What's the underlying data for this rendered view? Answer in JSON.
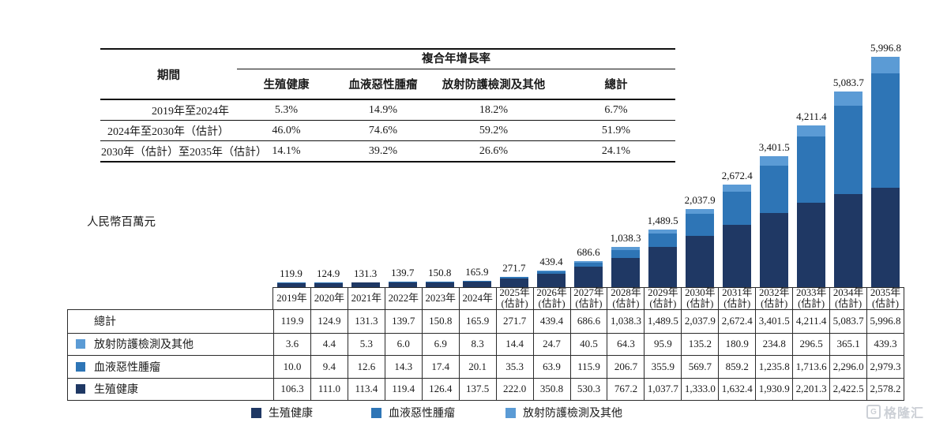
{
  "cagr_table": {
    "span_header": "複合年增長率",
    "period_header": "期間",
    "columns": [
      "生殖健康",
      "血液惡性腫瘤",
      "放射防護檢測及其他",
      "總計"
    ],
    "rows": [
      {
        "period": "2019年至2024年",
        "values": [
          "5.3%",
          "14.9%",
          "18.2%",
          "6.7%"
        ]
      },
      {
        "period": "2024年至2030年（估計）",
        "values": [
          "46.0%",
          "74.6%",
          "59.2%",
          "51.9%"
        ]
      },
      {
        "period": "2030年（估計）至2035年（估計）",
        "values": [
          "14.1%",
          "39.2%",
          "26.6%",
          "24.1%"
        ]
      }
    ]
  },
  "unit_label": "人民幣百萬元",
  "chart_data": {
    "type": "bar",
    "stacked": true,
    "title": "",
    "ylabel": "人民幣百萬元",
    "grid": false,
    "legend_position": "bottom",
    "ylim": [
      0,
      5996.8
    ],
    "categories": [
      "2019年",
      "2020年",
      "2021年",
      "2022年",
      "2023年",
      "2024年",
      "2025年",
      "2026年",
      "2027年",
      "2028年",
      "2029年",
      "2030年",
      "2031年",
      "2032年",
      "2033年",
      "2034年",
      "2035年"
    ],
    "estimate_note": "(估計)",
    "estimate_from_index": 6,
    "series": [
      {
        "name": "生殖健康",
        "color": "#1F3864",
        "values": [
          106.3,
          111.0,
          113.4,
          119.4,
          126.4,
          137.5,
          222.0,
          350.8,
          530.3,
          767.2,
          1037.7,
          1333.0,
          1632.4,
          1930.9,
          2201.3,
          2422.5,
          2578.2
        ]
      },
      {
        "name": "血液惡性腫瘤",
        "color": "#2E75B6",
        "values": [
          10.0,
          9.4,
          12.6,
          14.3,
          17.4,
          20.1,
          35.3,
          63.9,
          115.9,
          206.7,
          355.9,
          569.7,
          859.2,
          1235.8,
          1713.6,
          2296.0,
          2979.3
        ]
      },
      {
        "name": "放射防護檢測及其他",
        "color": "#5B9BD5",
        "values": [
          3.6,
          4.4,
          5.3,
          6.0,
          6.9,
          8.3,
          14.4,
          24.7,
          40.5,
          64.3,
          95.9,
          135.2,
          180.9,
          234.8,
          296.5,
          365.1,
          439.3
        ]
      }
    ],
    "totals": [
      119.9,
      124.9,
      131.3,
      139.7,
      150.8,
      165.9,
      271.7,
      439.4,
      686.6,
      1038.3,
      1489.5,
      2037.9,
      2672.4,
      3401.5,
      4211.4,
      5083.7,
      5996.8
    ]
  },
  "data_table": {
    "total_label": "總計",
    "row_order_note": "總計, 放射防護檢測及其他, 血液惡性腫瘤, 生殖健康"
  },
  "watermark": {
    "icon": "G",
    "text": "格隆汇"
  }
}
